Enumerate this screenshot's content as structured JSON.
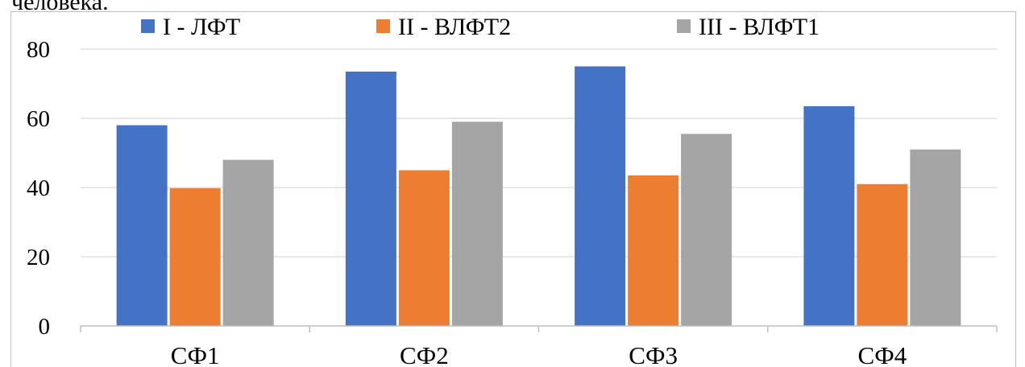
{
  "header_fragment": "человека.",
  "chart_data": {
    "type": "bar",
    "categories": [
      "СФ1",
      "СФ2",
      "СФ3",
      "СФ4"
    ],
    "series": [
      {
        "name": "I - ЛФТ",
        "color": "#4472C4",
        "values": [
          58,
          73.5,
          75,
          63.5
        ]
      },
      {
        "name": "II - ВЛФТ2",
        "color": "#ED7D31",
        "values": [
          39.8,
          45,
          43.5,
          41
        ]
      },
      {
        "name": "III - ВЛФТ1",
        "color": "#A5A5A5",
        "values": [
          48,
          59,
          55.5,
          51
        ]
      }
    ],
    "ylim": [
      0,
      80
    ],
    "yticks": [
      0,
      20,
      40,
      60,
      80
    ],
    "grid": true,
    "legend_position": "top"
  }
}
